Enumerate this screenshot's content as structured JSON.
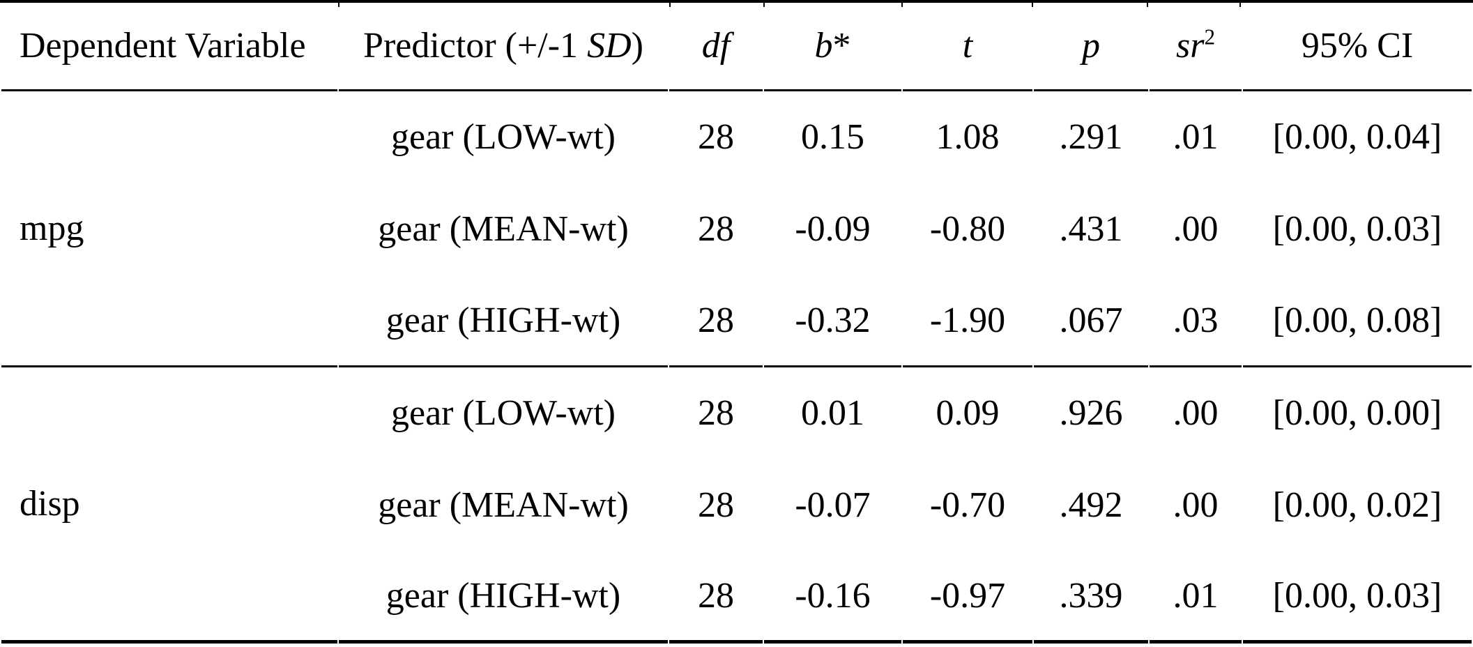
{
  "page": {
    "background_color": "#ffffff",
    "text_color": "#000000",
    "rule_color": "#000000"
  },
  "table": {
    "description": "Moderated multiple regression results table",
    "header": [
      {
        "id": "dv",
        "align": "left",
        "parts": [
          {
            "t": "Dependent Variable"
          }
        ]
      },
      {
        "id": "predictor",
        "align": "center",
        "parts": [
          {
            "t": "Predictor (+/-1 "
          },
          {
            "t": "SD",
            "italic": true
          },
          {
            "t": ")"
          }
        ]
      },
      {
        "id": "df",
        "align": "center",
        "parts": [
          {
            "t": "df",
            "italic": true
          }
        ]
      },
      {
        "id": "b",
        "align": "center",
        "parts": [
          {
            "t": "b",
            "italic": true
          },
          {
            "t": "*"
          }
        ]
      },
      {
        "id": "t",
        "align": "center",
        "parts": [
          {
            "t": "t",
            "italic": true
          }
        ]
      },
      {
        "id": "p",
        "align": "center",
        "parts": [
          {
            "t": "p",
            "italic": true
          }
        ]
      },
      {
        "id": "sr2",
        "align": "center",
        "parts": [
          {
            "t": "sr",
            "italic": true
          },
          {
            "t": "2",
            "sup": true
          }
        ]
      },
      {
        "id": "ci",
        "align": "center",
        "parts": [
          {
            "t": "95% CI"
          }
        ]
      }
    ],
    "groups": [
      {
        "dependent_variable": "mpg",
        "rows": [
          {
            "predictor": "gear (LOW-wt)",
            "df": "28",
            "b": "0.15",
            "t": "1.08",
            "p": ".291",
            "sr2": ".01",
            "ci": "[0.00, 0.04]"
          },
          {
            "predictor": "gear (MEAN-wt)",
            "df": "28",
            "b": "-0.09",
            "t": "-0.80",
            "p": ".431",
            "sr2": ".00",
            "ci": "[0.00, 0.03]"
          },
          {
            "predictor": "gear (HIGH-wt)",
            "df": "28",
            "b": "-0.32",
            "t": "-1.90",
            "p": ".067",
            "sr2": ".03",
            "ci": "[0.00, 0.08]"
          }
        ]
      },
      {
        "dependent_variable": "disp",
        "rows": [
          {
            "predictor": "gear (LOW-wt)",
            "df": "28",
            "b": "0.01",
            "t": "0.09",
            "p": ".926",
            "sr2": ".00",
            "ci": "[0.00, 0.00]"
          },
          {
            "predictor": "gear (MEAN-wt)",
            "df": "28",
            "b": "-0.07",
            "t": "-0.70",
            "p": ".492",
            "sr2": ".00",
            "ci": "[0.00, 0.02]"
          },
          {
            "predictor": "gear (HIGH-wt)",
            "df": "28",
            "b": "-0.16",
            "t": "-0.97",
            "p": ".339",
            "sr2": ".01",
            "ci": "[0.00, 0.03]"
          }
        ]
      }
    ]
  }
}
